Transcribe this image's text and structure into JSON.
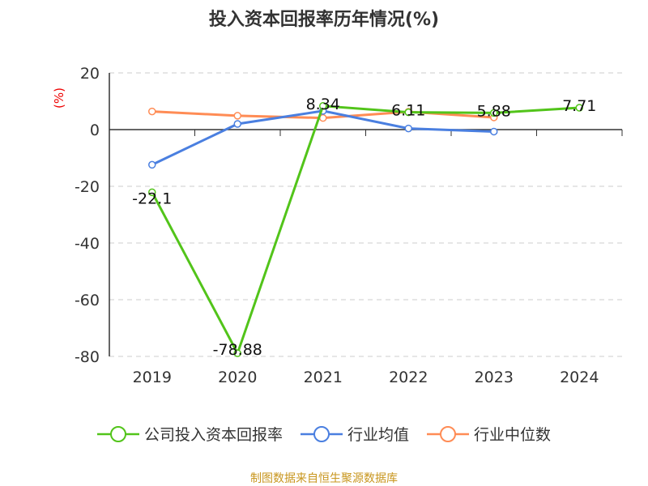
{
  "chart_data": {
    "type": "line",
    "title": "投入资本回报率历年情况(%)",
    "ylabel": "(%)",
    "categories": [
      "2019",
      "2020",
      "2021",
      "2022",
      "2023",
      "2024"
    ],
    "ylim": [
      -80,
      20
    ],
    "yticks": [
      20,
      0,
      -20,
      -40,
      -60,
      -80
    ],
    "grid": true,
    "legend_position": "bottom",
    "series": [
      {
        "name": "公司投入资本回报率",
        "color": "#52c41a",
        "values": [
          -22.1,
          -78.88,
          8.34,
          6.11,
          5.88,
          7.71
        ],
        "labels": [
          "-22.1",
          "-78.88",
          "8.34",
          "6.11",
          "5.88",
          "7.71"
        ]
      },
      {
        "name": "行业均值",
        "color": "#4a7fe0",
        "values": [
          -12.4,
          2.0,
          6.6,
          0.4,
          -0.7,
          null
        ]
      },
      {
        "name": "行业中位数",
        "color": "#ff8c55",
        "values": [
          6.4,
          4.9,
          4.1,
          6.3,
          4.3,
          null
        ]
      }
    ]
  },
  "source": "制图数据来自恒生聚源数据库"
}
